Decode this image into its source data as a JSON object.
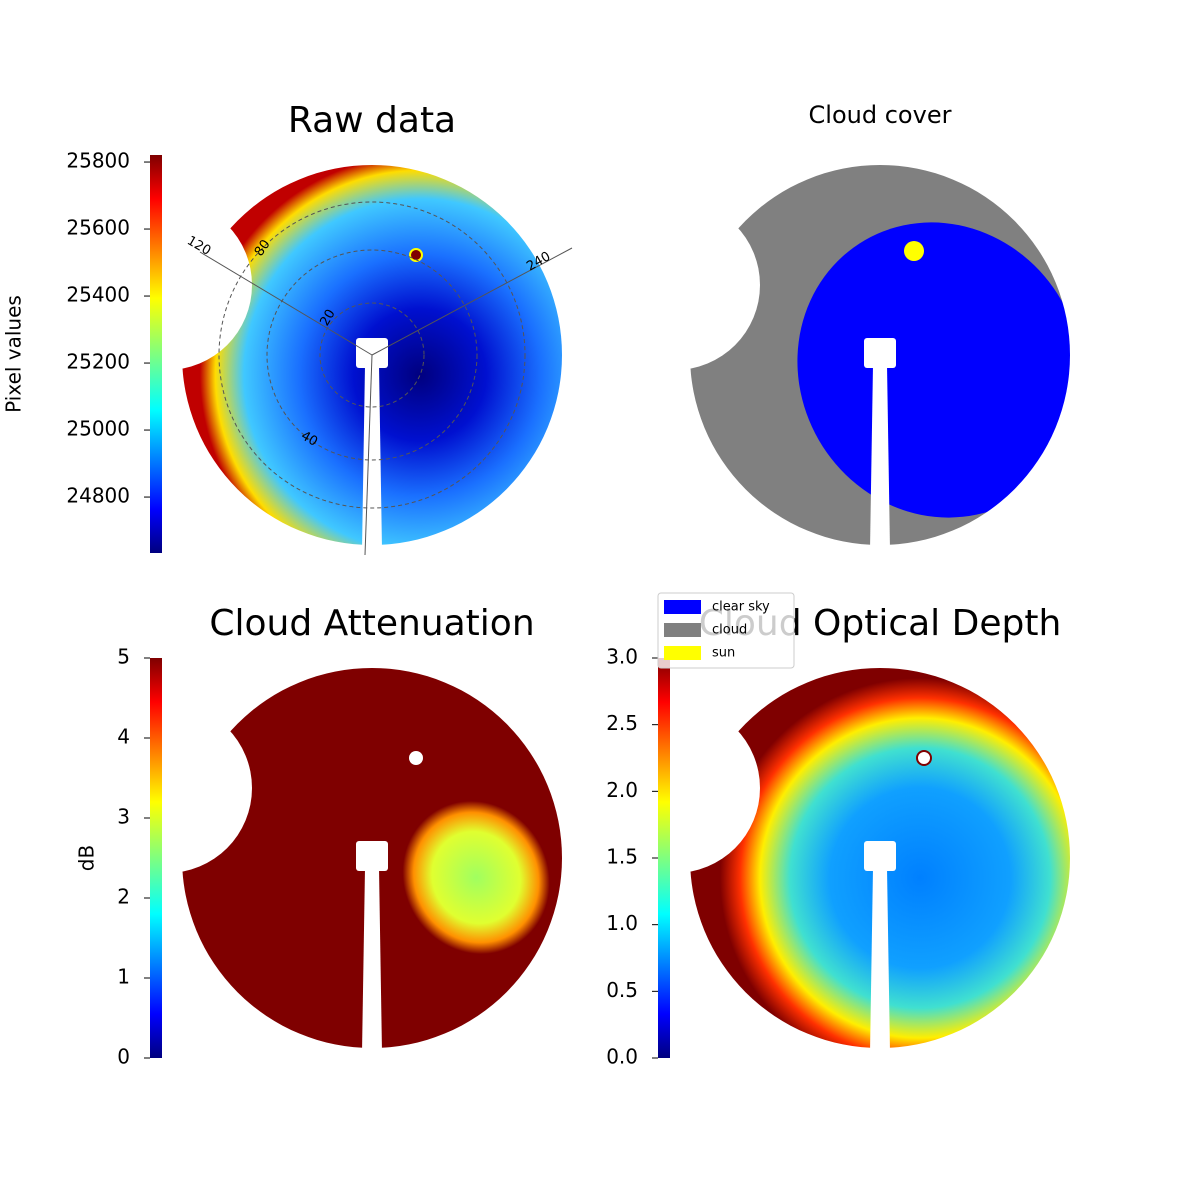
{
  "chart_data": [
    {
      "type": "image",
      "title": "Raw data",
      "colorbar": {
        "label": "Pixel values",
        "lim": [
          24633,
          25821
        ],
        "ticks": [
          24800,
          25000,
          25200,
          25400,
          25600,
          25800
        ]
      },
      "polar_labels": [
        "120",
        "80",
        "240",
        "20",
        "40"
      ]
    },
    {
      "type": "image",
      "title": "Cloud cover",
      "legend": [
        {
          "name": "clear sky",
          "color": "#0000ff"
        },
        {
          "name": "cloud",
          "color": "#808080"
        },
        {
          "name": "sun",
          "color": "#ffff00"
        }
      ]
    },
    {
      "type": "image",
      "title": "Cloud Attenuation",
      "colorbar": {
        "label": "dB",
        "lim": [
          0,
          5
        ],
        "ticks": [
          0,
          1,
          2,
          3,
          4,
          5
        ]
      }
    },
    {
      "type": "image",
      "title": "Cloud Optical Depth",
      "colorbar": {
        "lim": [
          0,
          3
        ],
        "ticks": [
          {
            "value": 0,
            "label": "0.0"
          },
          0.5,
          {
            "value": 1,
            "label": "1.0"
          },
          1.5,
          {
            "value": 2,
            "label": "2.0"
          },
          2.5,
          {
            "value": 3,
            "label": "3.0"
          }
        ]
      }
    }
  ]
}
